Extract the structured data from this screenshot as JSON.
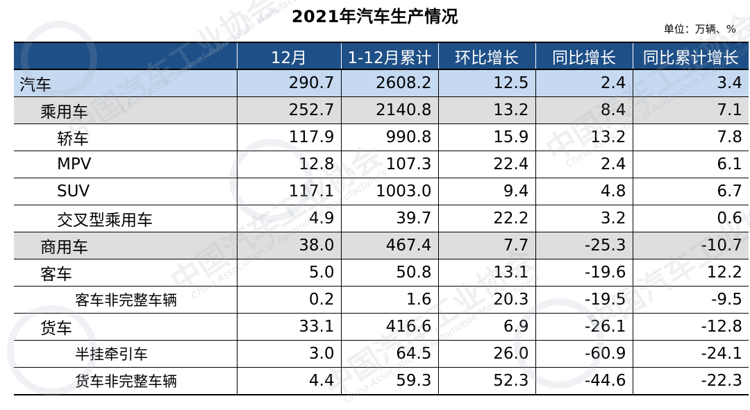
{
  "title": "2021年汽车生产情况",
  "unit": "单位：万辆、%",
  "watermark": {
    "text_cn": "中国汽车工业协会",
    "text_en": "China Association of Automobile Manufacturers"
  },
  "table": {
    "headers": [
      "",
      "12月",
      "1-12月累计",
      "环比增长",
      "同比增长",
      "同比累计增长"
    ],
    "rows": [
      {
        "label": "汽车",
        "cells": [
          "290.7",
          "2608.2",
          "12.5",
          "2.4",
          "3.4"
        ]
      },
      {
        "label": "乘用车",
        "cells": [
          "252.7",
          "2140.8",
          "13.2",
          "8.4",
          "7.1"
        ]
      },
      {
        "label": "轿车",
        "cells": [
          "117.9",
          "990.8",
          "15.9",
          "13.2",
          "7.8"
        ]
      },
      {
        "label": "MPV",
        "cells": [
          "12.8",
          "107.3",
          "22.4",
          "2.4",
          "6.1"
        ]
      },
      {
        "label": "SUV",
        "cells": [
          "117.1",
          "1003.0",
          "9.4",
          "4.8",
          "6.7"
        ]
      },
      {
        "label": "交叉型乘用车",
        "cells": [
          "4.9",
          "39.7",
          "22.2",
          "3.2",
          "0.6"
        ]
      },
      {
        "label": "商用车",
        "cells": [
          "38.0",
          "467.4",
          "7.7",
          "-25.3",
          "-10.7"
        ]
      },
      {
        "label": "客车",
        "cells": [
          "5.0",
          "50.8",
          "13.1",
          "-19.6",
          "12.2"
        ]
      },
      {
        "label": "客车非完整车辆",
        "cells": [
          "0.2",
          "1.6",
          "20.3",
          "-19.5",
          "-9.5"
        ]
      },
      {
        "label": "货车",
        "cells": [
          "33.1",
          "416.6",
          "6.9",
          "-26.1",
          "-12.8"
        ]
      },
      {
        "label": "半挂牵引车",
        "cells": [
          "3.0",
          "64.5",
          "26.0",
          "-60.9",
          "-24.1"
        ]
      },
      {
        "label": "货车非完整车辆",
        "cells": [
          "4.4",
          "59.3",
          "52.3",
          "-44.6",
          "-22.3"
        ]
      }
    ]
  },
  "colors": {
    "header_bg": "#1e4f86",
    "total_row_bg": "#c5d9f1",
    "section_row_bg": "#dedede"
  }
}
